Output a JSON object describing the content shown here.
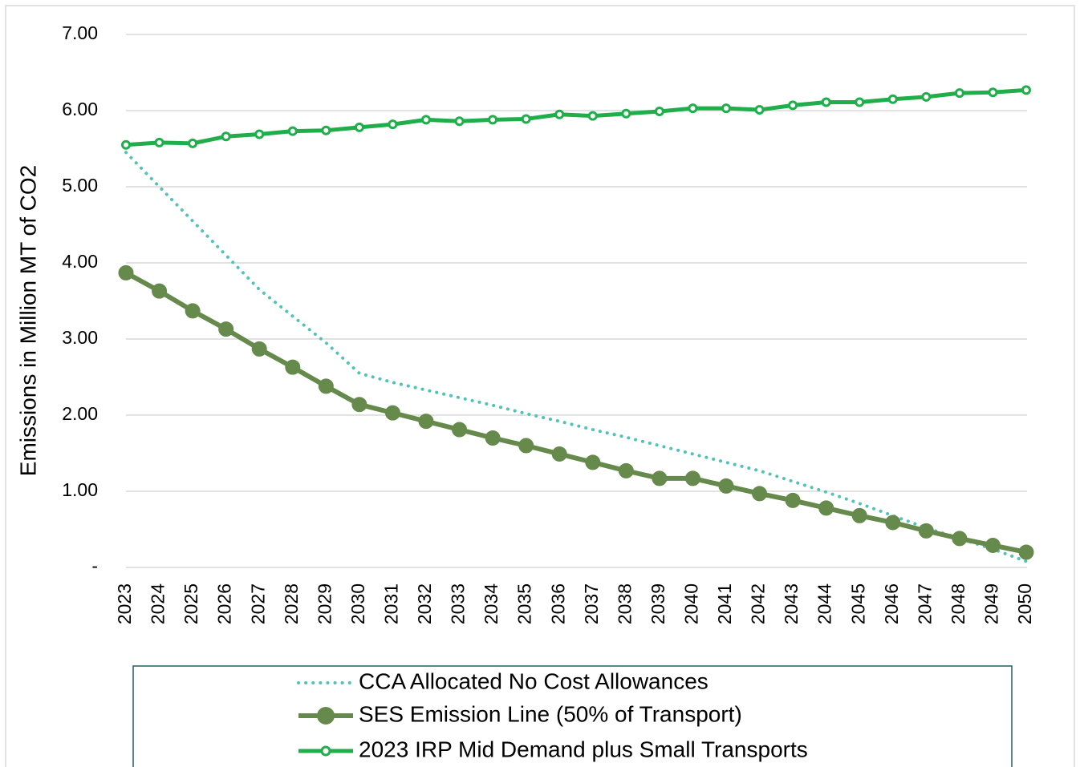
{
  "chart_data": {
    "type": "line",
    "y_axis_label": "Emissions in Million MT of CO2",
    "categories": [
      "2023",
      "2024",
      "2025",
      "2026",
      "2027",
      "2028",
      "2029",
      "2030",
      "2031",
      "2032",
      "2033",
      "2034",
      "2035",
      "2036",
      "2037",
      "2038",
      "2039",
      "2040",
      "2041",
      "2042",
      "2043",
      "2044",
      "2045",
      "2046",
      "2047",
      "2048",
      "2049",
      "2050"
    ],
    "series": [
      {
        "name": "CCA Allocated No Cost Allowances",
        "color": "#4fc3b7",
        "dash": "dotted",
        "marker": "none",
        "values": [
          5.45,
          5.0,
          4.55,
          4.1,
          3.65,
          3.3,
          2.95,
          2.55,
          2.43,
          2.33,
          2.23,
          2.13,
          2.02,
          1.92,
          1.81,
          1.71,
          1.6,
          1.49,
          1.38,
          1.27,
          1.13,
          0.99,
          0.84,
          0.68,
          0.52,
          0.38,
          0.24,
          0.08
        ]
      },
      {
        "name": "SES Emission Line (50% of Transport)",
        "color": "#66894c",
        "dash": "solid",
        "marker": "filled",
        "values": [
          3.87,
          3.63,
          3.37,
          3.13,
          2.87,
          2.63,
          2.38,
          2.14,
          2.03,
          1.92,
          1.81,
          1.7,
          1.6,
          1.49,
          1.38,
          1.27,
          1.17,
          1.17,
          1.07,
          0.97,
          0.88,
          0.78,
          0.68,
          0.59,
          0.48,
          0.38,
          0.29,
          0.2
        ]
      },
      {
        "name": "2023 IRP Mid Demand plus Small Transports",
        "color": "#1fae4a",
        "dash": "solid",
        "marker": "hollow",
        "values": [
          5.55,
          5.58,
          5.57,
          5.66,
          5.69,
          5.73,
          5.74,
          5.78,
          5.82,
          5.88,
          5.86,
          5.88,
          5.89,
          5.95,
          5.93,
          5.96,
          5.99,
          6.03,
          6.03,
          6.01,
          6.07,
          6.11,
          6.11,
          6.15,
          6.18,
          6.23,
          6.24,
          6.27
        ]
      }
    ],
    "ylim": [
      0,
      7
    ],
    "yticks": [
      {
        "value": 0,
        "label": "-"
      },
      {
        "value": 1,
        "label": "1.00"
      },
      {
        "value": 2,
        "label": "2.00"
      },
      {
        "value": 3,
        "label": "3.00"
      },
      {
        "value": 4,
        "label": "4.00"
      },
      {
        "value": 5,
        "label": "5.00"
      },
      {
        "value": 6,
        "label": "6.00"
      },
      {
        "value": 7,
        "label": "7.00"
      }
    ],
    "grid": true,
    "legend": "bottom"
  }
}
